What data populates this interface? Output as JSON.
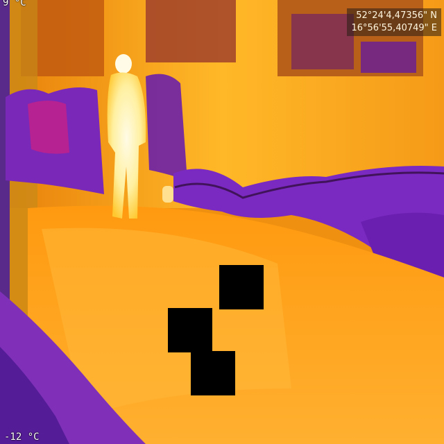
{
  "overlay": {
    "temp_max": "9 °C",
    "temp_min": "-12 °C",
    "gps_lat": "52°24'4,47356\" N",
    "gps_lon": "16°56'55,40749\" E"
  },
  "palette": {
    "hot": "#fff6c8",
    "warm": "#ffb020",
    "mid": "#ff8c00",
    "cool": "#c0187a",
    "cold": "#6a1fb0",
    "coldest": "#2a0a6a",
    "redaction": "#000000"
  }
}
